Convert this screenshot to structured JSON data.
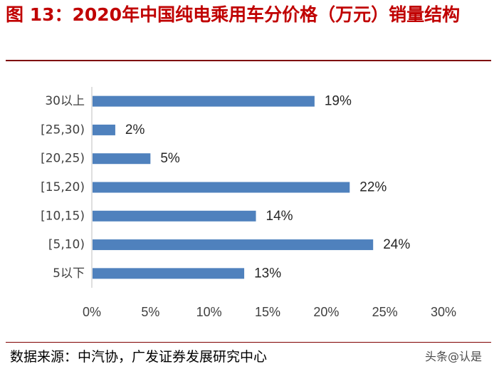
{
  "figure": {
    "title": "图 13：2020年中国纯电乘用车分价格（万元）销量结构",
    "source": "数据来源：中汽协，广发证券发展研究中心",
    "watermark": "头条@认是"
  },
  "colors": {
    "bar": "#4f81bd",
    "title": "#c00000",
    "rule": "#7f0000",
    "axis": "#bfbfbf"
  },
  "chart_data": {
    "type": "bar",
    "orientation": "horizontal",
    "categories": [
      "30以上",
      "[25,30)",
      "[20,25)",
      "[15,20)",
      "[10,15)",
      "[5,10)",
      "5以下"
    ],
    "values": [
      19,
      2,
      5,
      22,
      14,
      24,
      13
    ],
    "value_labels": [
      "19%",
      "2%",
      "5%",
      "22%",
      "14%",
      "24%",
      "13%"
    ],
    "xlim": [
      0,
      30
    ],
    "xticks": [
      0,
      5,
      10,
      15,
      20,
      25,
      30
    ],
    "xtick_labels": [
      "0%",
      "5%",
      "10%",
      "15%",
      "20%",
      "25%",
      "30%"
    ],
    "grid": false,
    "legend": "none"
  }
}
